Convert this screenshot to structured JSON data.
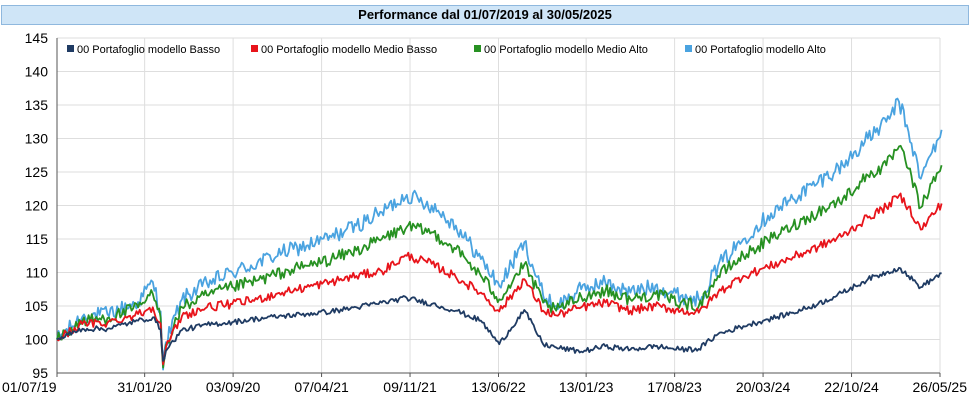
{
  "title": "Performance dal 01/07/2019 al 30/05/2025",
  "chart_data": {
    "type": "line",
    "title": "Performance dal 01/07/2019 al 30/05/2025",
    "xlabel": "",
    "ylabel": "",
    "ylim": [
      95,
      145
    ],
    "yticks": [
      95,
      100,
      105,
      110,
      115,
      120,
      125,
      130,
      135,
      140,
      145
    ],
    "grid": true,
    "legend_position": "top-left",
    "x_tick_labels": [
      "01/07/19",
      "31/01/20",
      "03/09/20",
      "07/04/21",
      "09/11/21",
      "13/06/22",
      "13/01/23",
      "17/08/23",
      "20/03/24",
      "22/10/24",
      "26/05/25"
    ],
    "x": [
      "01/07/19",
      "01/09/19",
      "01/11/19",
      "15/01/20",
      "20/02/20",
      "10/03/20",
      "16/03/20",
      "23/03/20",
      "01/05/20",
      "01/07/20",
      "01/09/20",
      "01/11/20",
      "01/01/21",
      "01/03/21",
      "01/05/21",
      "01/07/21",
      "01/09/21",
      "01/11/21",
      "01/01/22",
      "01/03/22",
      "01/05/22",
      "15/06/22",
      "15/08/22",
      "30/09/22",
      "01/11/22",
      "01/01/23",
      "01/03/23",
      "01/05/23",
      "01/07/23",
      "01/09/23",
      "15/10/23",
      "01/12/23",
      "01/02/24",
      "01/04/24",
      "01/06/24",
      "01/08/24",
      "01/10/24",
      "01/12/24",
      "15/01/25",
      "15/02/25",
      "10/03/25",
      "09/04/25",
      "30/05/25"
    ],
    "series": [
      {
        "name": "00 Portafoglio modello Basso",
        "color": "#1f3b63",
        "values": [
          100,
          101.6,
          101.6,
          102.8,
          103.3,
          101.5,
          96.8,
          98.3,
          101.4,
          102.2,
          102.6,
          103.1,
          103.5,
          103.8,
          104.2,
          104.8,
          105.5,
          106.2,
          105.3,
          104.3,
          102.8,
          99.3,
          104.4,
          99.3,
          98.8,
          98.2,
          99.0,
          98.5,
          99.0,
          98.5,
          98.6,
          100.8,
          102.0,
          103.0,
          104.0,
          105.3,
          107.0,
          109.0,
          110.0,
          110.7,
          109.5,
          107.8,
          109.9
        ]
      },
      {
        "name": "00 Portafoglio modello Medio Basso",
        "color": "#e8141b",
        "values": [
          100,
          102.3,
          102.5,
          103.8,
          104.8,
          102.4,
          96.3,
          98.8,
          103.5,
          104.8,
          105.3,
          106.0,
          107.0,
          107.8,
          108.6,
          109.5,
          110.2,
          112.5,
          111.3,
          109.3,
          107.0,
          104.2,
          109.0,
          104.3,
          103.6,
          104.8,
          105.5,
          104.3,
          105.0,
          104.3,
          104.0,
          107.0,
          109.5,
          110.8,
          112.3,
          113.8,
          115.5,
          118.2,
          119.8,
          121.5,
          119.8,
          116.4,
          120.3
        ]
      },
      {
        "name": "00 Portafoglio modello Medio Alto",
        "color": "#279122",
        "values": [
          100,
          102.8,
          103.2,
          104.8,
          106.8,
          103.3,
          95.8,
          99.2,
          104.8,
          106.6,
          107.8,
          108.8,
          110.0,
          111.0,
          112.0,
          113.3,
          115.0,
          116.8,
          116.0,
          113.5,
          109.5,
          106.0,
          111.2,
          105.5,
          104.3,
          106.4,
          107.3,
          106.0,
          106.8,
          105.5,
          105.0,
          109.5,
          112.5,
          114.8,
          117.0,
          119.0,
          121.0,
          124.5,
          126.0,
          128.8,
          125.5,
          119.7,
          126.0
        ]
      },
      {
        "name": "00 Portafoglio modello Alto",
        "color": "#4aa3e0",
        "values": [
          100,
          103.4,
          103.8,
          105.6,
          108.6,
          104.2,
          95.5,
          99.6,
          106.0,
          108.4,
          110.0,
          111.4,
          113.0,
          114.0,
          115.3,
          117.0,
          119.0,
          121.6,
          120.0,
          117.0,
          112.0,
          108.0,
          114.5,
          106.6,
          105.0,
          107.5,
          108.5,
          107.0,
          108.0,
          106.5,
          106.0,
          111.0,
          115.0,
          118.5,
          121.0,
          123.5,
          126.0,
          130.0,
          132.5,
          135.5,
          131.0,
          124.0,
          131.3
        ]
      }
    ]
  }
}
